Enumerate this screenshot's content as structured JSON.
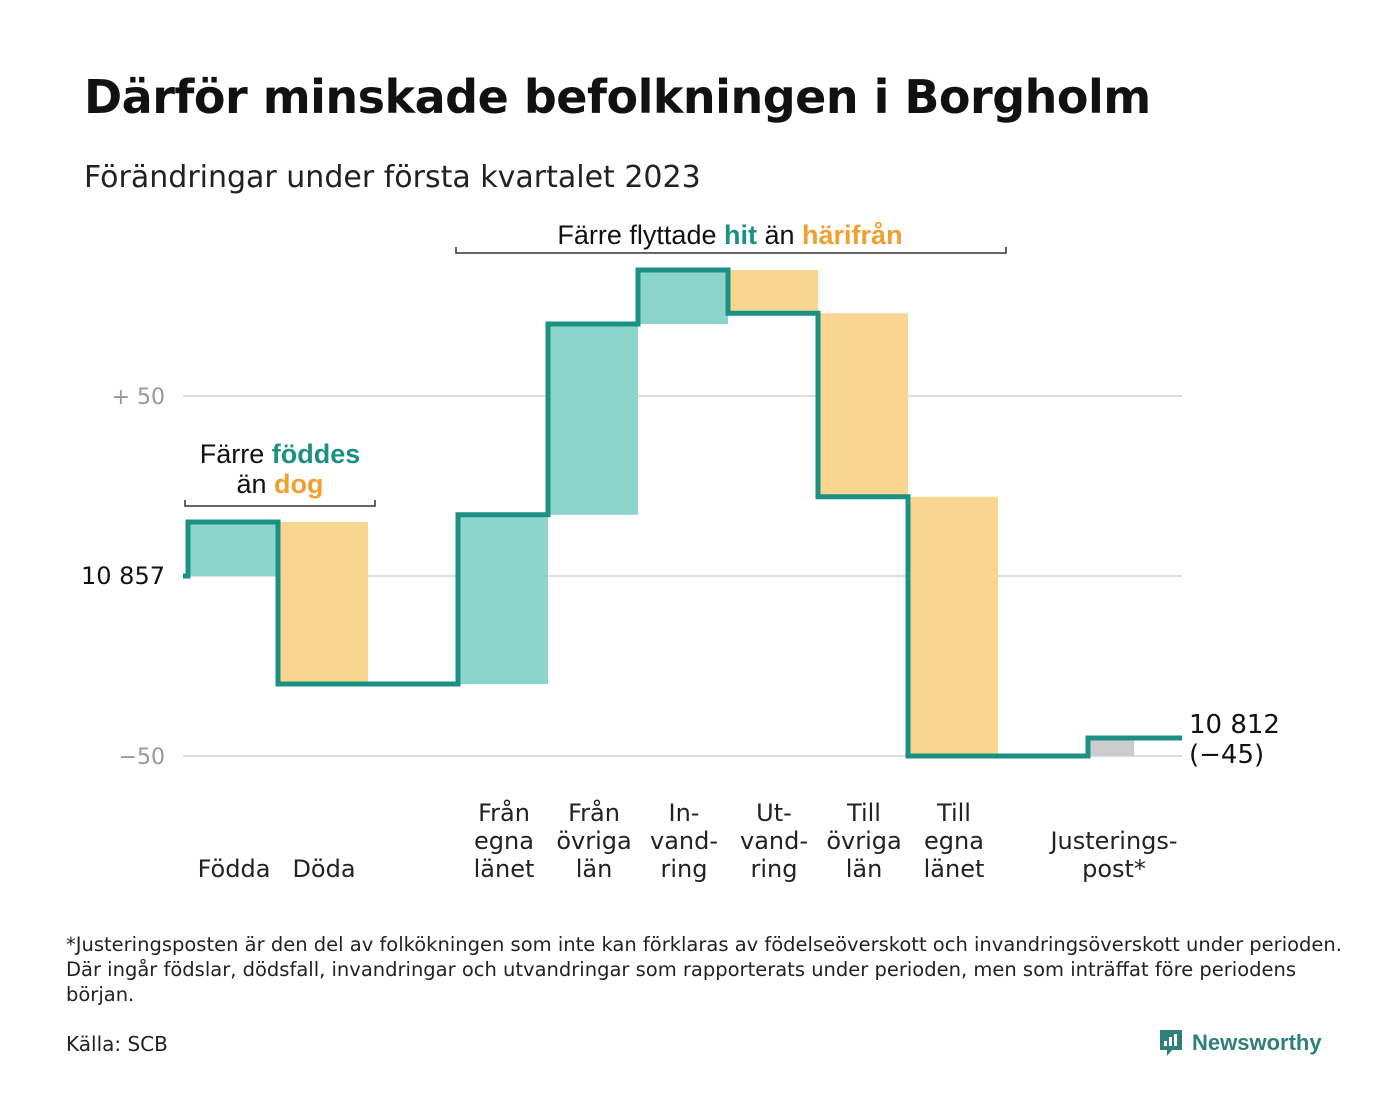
{
  "title": "Därför minskade befolkningen i Borgholm",
  "subtitle": "Förändringar under första kvartalet 2023",
  "colors": {
    "inflow": "#8dd5cc",
    "outflow": "#f9d68f",
    "adjustment": "#cccccc",
    "line": "#1a9182",
    "accent_hit": "#1a9182",
    "accent_from": "#f0a030"
  },
  "annotations": {
    "births": {
      "line1_pre": "Färre ",
      "line1_hl": "föddes",
      "line2_pre": "än ",
      "line2_hl": "dog"
    },
    "migration": {
      "pre": "Färre flyttade ",
      "hl1": "hit",
      "mid": " än ",
      "hl2": "härifrån"
    }
  },
  "chart_data": {
    "type": "waterfall",
    "title": "Därför minskade befolkningen i Borgholm",
    "subtitle": "Förändringar under första kvartalet 2023",
    "start_value": 10857,
    "start_label": "10 857",
    "end_value": 10812,
    "end_label": "10 812",
    "change_label": "(−45)",
    "y_tick_labels": [
      "+ 50",
      "−50"
    ],
    "ylim": [
      -55,
      52
    ],
    "grid": true,
    "steps": [
      {
        "category": "Födda",
        "label_lines": [
          "Födda"
        ],
        "delta": 15,
        "kind": "inflow"
      },
      {
        "category": "Döda",
        "label_lines": [
          "Döda"
        ],
        "delta": -45,
        "kind": "outflow"
      },
      {
        "category": "Från egna länet",
        "label_lines": [
          "Från",
          "egna",
          "länet"
        ],
        "delta": 47,
        "kind": "inflow"
      },
      {
        "category": "Från övriga län",
        "label_lines": [
          "Från",
          "övriga",
          "län"
        ],
        "delta": 53,
        "kind": "inflow"
      },
      {
        "category": "Invandring",
        "label_lines": [
          "In-",
          "vand-",
          "ring"
        ],
        "delta": 15,
        "kind": "inflow"
      },
      {
        "category": "Utvandring",
        "label_lines": [
          "Ut-",
          "vand-",
          "ring"
        ],
        "delta": -12,
        "kind": "outflow"
      },
      {
        "category": "Till övriga län",
        "label_lines": [
          "Till",
          "övriga",
          "län"
        ],
        "delta": -51,
        "kind": "outflow"
      },
      {
        "category": "Till egna länet",
        "label_lines": [
          "Till",
          "egna",
          "länet"
        ],
        "delta": -72,
        "kind": "outflow"
      },
      {
        "category": "Justeringspost*",
        "label_lines": [
          "Justerings-",
          "post*"
        ],
        "delta": 5,
        "kind": "adjustment"
      }
    ]
  },
  "footnote": "*Justeringsposten är den del av folkökningen som inte kan förklaras av födelseöverskott och invandringsöverskott under perioden. Där ingår födslar, dödsfall, invandringar och utvandringar som rapporterats under perioden, men som inträffat före periodens början.",
  "source": "Källa: SCB",
  "brand": {
    "name": "Newsworthy",
    "icon": "newsworthy-logo-icon"
  }
}
